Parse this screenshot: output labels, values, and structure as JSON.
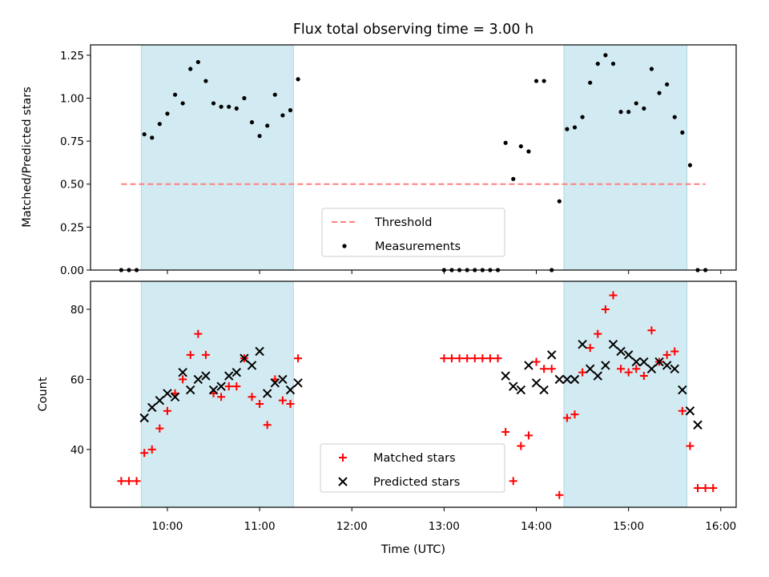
{
  "chart_data": {
    "type": "scatter",
    "title": "Flux total observing time = 3.00 h",
    "xlabel": "Time (UTC)",
    "x_unit": "hours UTC",
    "xlim": [
      "09:10",
      "16:10"
    ],
    "xticks": [
      "10:00",
      "11:00",
      "12:00",
      "13:00",
      "14:00",
      "15:00",
      "16:00"
    ],
    "shaded_intervals": [
      [
        "09:43",
        "11:22"
      ],
      [
        "14:18",
        "15:38"
      ]
    ],
    "shade_color": "#add8e6",
    "panels": [
      {
        "ylabel": "Matched/Predicted stars",
        "ylim": [
          0,
          1.31
        ],
        "yticks": [
          "0.00",
          "0.25",
          "0.50",
          "0.75",
          "1.00",
          "1.25"
        ],
        "threshold": {
          "name": "Threshold",
          "value": 0.5,
          "x_range": [
            "09:30",
            "15:50"
          ],
          "color": "#ff8080"
        },
        "series": [
          {
            "name": "Measurements",
            "marker": "dot",
            "color": "#000000",
            "points": [
              [
                "09:30",
                0.0
              ],
              [
                "09:35",
                0.0
              ],
              [
                "09:40",
                0.0
              ],
              [
                "09:45",
                0.79
              ],
              [
                "09:50",
                0.77
              ],
              [
                "09:55",
                0.85
              ],
              [
                "10:00",
                0.91
              ],
              [
                "10:05",
                1.02
              ],
              [
                "10:10",
                0.97
              ],
              [
                "10:15",
                1.17
              ],
              [
                "10:20",
                1.21
              ],
              [
                "10:25",
                1.1
              ],
              [
                "10:30",
                0.97
              ],
              [
                "10:35",
                0.95
              ],
              [
                "10:40",
                0.95
              ],
              [
                "10:45",
                0.94
              ],
              [
                "10:50",
                1.0
              ],
              [
                "10:55",
                0.86
              ],
              [
                "11:00",
                0.78
              ],
              [
                "11:05",
                0.84
              ],
              [
                "11:10",
                1.02
              ],
              [
                "11:15",
                0.9
              ],
              [
                "11:20",
                0.93
              ],
              [
                "11:25",
                1.11
              ],
              [
                "13:00",
                0.0
              ],
              [
                "13:05",
                0.0
              ],
              [
                "13:10",
                0.0
              ],
              [
                "13:15",
                0.0
              ],
              [
                "13:20",
                0.0
              ],
              [
                "13:25",
                0.0
              ],
              [
                "13:30",
                0.0
              ],
              [
                "13:35",
                0.0
              ],
              [
                "13:40",
                0.74
              ],
              [
                "13:45",
                0.53
              ],
              [
                "13:50",
                0.72
              ],
              [
                "13:55",
                0.69
              ],
              [
                "14:00",
                1.1
              ],
              [
                "14:05",
                1.1
              ],
              [
                "14:10",
                0.0
              ],
              [
                "14:15",
                0.4
              ],
              [
                "14:20",
                0.82
              ],
              [
                "14:25",
                0.83
              ],
              [
                "14:30",
                0.89
              ],
              [
                "14:35",
                1.09
              ],
              [
                "14:40",
                1.2
              ],
              [
                "14:45",
                1.25
              ],
              [
                "14:50",
                1.2
              ],
              [
                "14:55",
                0.92
              ],
              [
                "15:00",
                0.92
              ],
              [
                "15:05",
                0.97
              ],
              [
                "15:10",
                0.94
              ],
              [
                "15:15",
                1.17
              ],
              [
                "15:20",
                1.03
              ],
              [
                "15:25",
                1.08
              ],
              [
                "15:30",
                0.89
              ],
              [
                "15:35",
                0.8
              ],
              [
                "15:40",
                0.61
              ],
              [
                "15:45",
                0.0
              ],
              [
                "15:50",
                0.0
              ]
            ]
          }
        ],
        "legend": {
          "placement": "lower center",
          "entries": [
            "Threshold",
            "Measurements"
          ]
        }
      },
      {
        "ylabel": "Count",
        "ylim": [
          23.5,
          88
        ],
        "yticks": [
          "40",
          "60",
          "80"
        ],
        "series": [
          {
            "name": "Matched stars",
            "marker": "plus",
            "color": "#ff0000",
            "points": [
              [
                "09:30",
                31
              ],
              [
                "09:35",
                31
              ],
              [
                "09:40",
                31
              ],
              [
                "09:45",
                39
              ],
              [
                "09:50",
                40
              ],
              [
                "09:55",
                46
              ],
              [
                "10:00",
                51
              ],
              [
                "10:05",
                56
              ],
              [
                "10:10",
                60
              ],
              [
                "10:15",
                67
              ],
              [
                "10:20",
                73
              ],
              [
                "10:25",
                67
              ],
              [
                "10:30",
                56
              ],
              [
                "10:35",
                55
              ],
              [
                "10:40",
                58
              ],
              [
                "10:45",
                58
              ],
              [
                "10:50",
                66
              ],
              [
                "10:55",
                55
              ],
              [
                "11:00",
                53
              ],
              [
                "11:05",
                47
              ],
              [
                "11:10",
                60
              ],
              [
                "11:15",
                54
              ],
              [
                "11:20",
                53
              ],
              [
                "11:25",
                66
              ],
              [
                "13:00",
                66
              ],
              [
                "13:05",
                66
              ],
              [
                "13:10",
                66
              ],
              [
                "13:15",
                66
              ],
              [
                "13:20",
                66
              ],
              [
                "13:25",
                66
              ],
              [
                "13:30",
                66
              ],
              [
                "13:35",
                66
              ],
              [
                "13:40",
                45
              ],
              [
                "13:45",
                31
              ],
              [
                "13:50",
                41
              ],
              [
                "13:55",
                44
              ],
              [
                "14:00",
                65
              ],
              [
                "14:05",
                63
              ],
              [
                "14:10",
                63
              ],
              [
                "14:15",
                27
              ],
              [
                "14:20",
                49
              ],
              [
                "14:25",
                50
              ],
              [
                "14:30",
                62
              ],
              [
                "14:35",
                69
              ],
              [
                "14:40",
                73
              ],
              [
                "14:45",
                80
              ],
              [
                "14:50",
                84
              ],
              [
                "14:55",
                63
              ],
              [
                "15:00",
                62
              ],
              [
                "15:05",
                63
              ],
              [
                "15:10",
                61
              ],
              [
                "15:15",
                74
              ],
              [
                "15:20",
                65
              ],
              [
                "15:25",
                67
              ],
              [
                "15:30",
                68
              ],
              [
                "15:35",
                51
              ],
              [
                "15:40",
                41
              ],
              [
                "15:45",
                29
              ],
              [
                "15:50",
                29
              ],
              [
                "15:55",
                29
              ]
            ]
          },
          {
            "name": "Predicted stars",
            "marker": "x",
            "color": "#000000",
            "points": [
              [
                "09:45",
                49
              ],
              [
                "09:50",
                52
              ],
              [
                "09:55",
                54
              ],
              [
                "10:00",
                56
              ],
              [
                "10:05",
                55
              ],
              [
                "10:10",
                62
              ],
              [
                "10:15",
                57
              ],
              [
                "10:20",
                60
              ],
              [
                "10:25",
                61
              ],
              [
                "10:30",
                57
              ],
              [
                "10:35",
                58
              ],
              [
                "10:40",
                61
              ],
              [
                "10:45",
                62
              ],
              [
                "10:50",
                66
              ],
              [
                "10:55",
                64
              ],
              [
                "11:00",
                68
              ],
              [
                "11:05",
                56
              ],
              [
                "11:10",
                59
              ],
              [
                "11:15",
                60
              ],
              [
                "11:20",
                57
              ],
              [
                "11:25",
                59
              ],
              [
                "13:40",
                61
              ],
              [
                "13:45",
                58
              ],
              [
                "13:50",
                57
              ],
              [
                "13:55",
                64
              ],
              [
                "14:00",
                59
              ],
              [
                "14:05",
                57
              ],
              [
                "14:10",
                67
              ],
              [
                "14:15",
                60
              ],
              [
                "14:20",
                60
              ],
              [
                "14:25",
                60
              ],
              [
                "14:30",
                70
              ],
              [
                "14:35",
                63
              ],
              [
                "14:40",
                61
              ],
              [
                "14:45",
                64
              ],
              [
                "14:50",
                70
              ],
              [
                "14:55",
                68
              ],
              [
                "15:00",
                67
              ],
              [
                "15:05",
                65
              ],
              [
                "15:10",
                65
              ],
              [
                "15:15",
                63
              ],
              [
                "15:20",
                65
              ],
              [
                "15:25",
                64
              ],
              [
                "15:30",
                63
              ],
              [
                "15:35",
                57
              ],
              [
                "15:40",
                51
              ],
              [
                "15:45",
                47
              ]
            ]
          }
        ],
        "legend": {
          "placement": "lower center",
          "entries": [
            "Matched stars",
            "Predicted stars"
          ]
        }
      }
    ]
  }
}
